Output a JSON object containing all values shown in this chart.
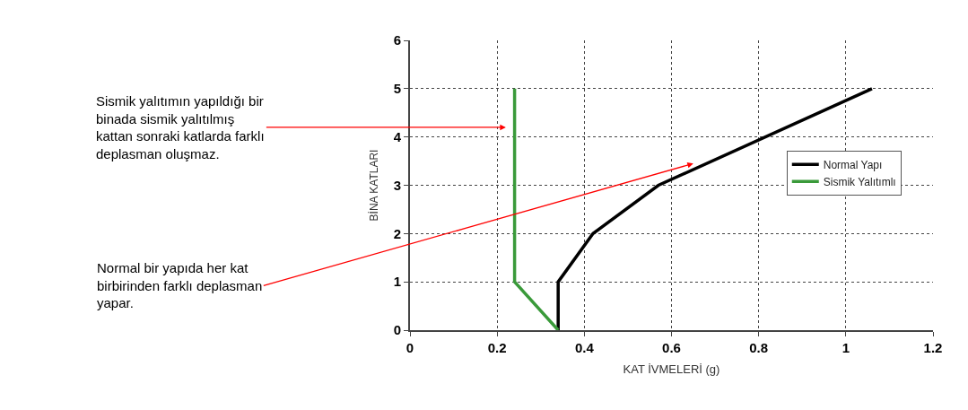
{
  "chart_data": {
    "type": "line",
    "xlabel": "KAT İVMELERİ (g)",
    "ylabel": "BİNA KATLARI",
    "series": [
      {
        "name": "Normal Yapı",
        "color": "#000000",
        "x": [
          0.34,
          0.34,
          0.42,
          0.57,
          1.06
        ],
        "values": [
          0,
          1,
          2,
          3,
          5
        ]
      },
      {
        "name": "Sismik Yalıtımlı",
        "color": "#3a9a3a",
        "x": [
          0.34,
          0.24,
          0.24
        ],
        "values": [
          0,
          1,
          5
        ]
      }
    ],
    "xlim": [
      0,
      1.2
    ],
    "xticks": [
      0,
      0.2,
      0.4,
      0.6,
      0.8,
      1,
      1.2
    ],
    "ylim": [
      0,
      6
    ],
    "yticks": [
      0,
      1,
      2,
      3,
      4,
      5,
      6
    ],
    "grid": true,
    "legend": "right",
    "marker": "none",
    "line_style": "solid",
    "annotations": [
      "Sismik yalıtımın yapıldığı bir\nbinada sismik yalıtılmış\nkattan sonraki katlarda farklı\ndeplasman oluşmaz.",
      "Normal bir yapıda her kat\nbirbirinden farklı deplasman\nyapar."
    ]
  }
}
